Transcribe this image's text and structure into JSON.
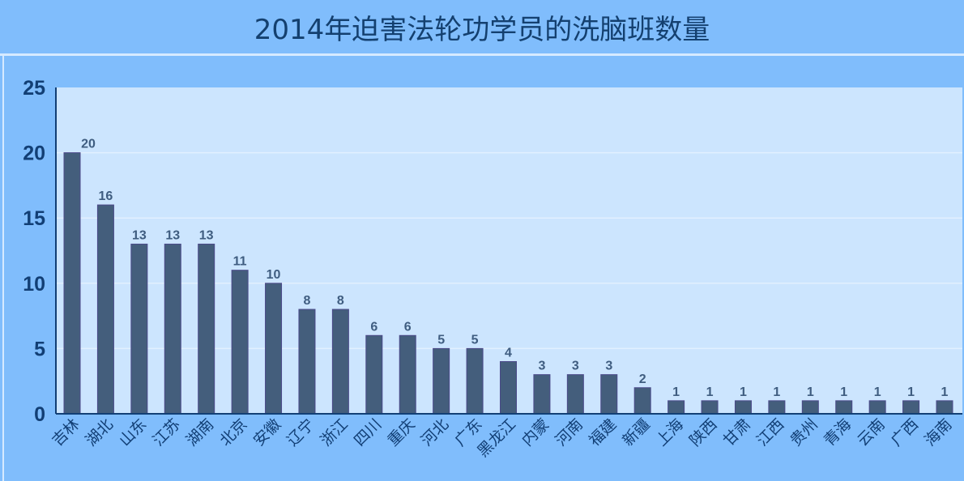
{
  "chart_data": {
    "type": "bar",
    "title": "2014年迫害法轮功学员的洗脑班数量",
    "categories": [
      "吉林",
      "湖北",
      "山东",
      "江苏",
      "湖南",
      "北京",
      "安徽",
      "辽宁",
      "浙江",
      "四川",
      "重庆",
      "河北",
      "广东",
      "黑龙江",
      "内蒙",
      "河南",
      "福建",
      "新疆",
      "上海",
      "陕西",
      "甘肃",
      "江西",
      "贵州",
      "青海",
      "云南",
      "广西",
      "海南"
    ],
    "values": [
      20,
      16,
      13,
      13,
      13,
      11,
      10,
      8,
      8,
      6,
      6,
      5,
      5,
      4,
      3,
      3,
      3,
      2,
      1,
      1,
      1,
      1,
      1,
      1,
      1,
      1,
      1
    ],
    "ylim": [
      0,
      25
    ],
    "yticks": [
      0,
      5,
      10,
      15,
      20,
      25
    ],
    "grid": true,
    "data_labels": true,
    "colors": {
      "bar": "#445e7c",
      "plot_bg": "#cce5fe",
      "frame_bg": "#80bdfc",
      "axis_text": "#123f75",
      "label_text": "#3f5d80"
    }
  }
}
